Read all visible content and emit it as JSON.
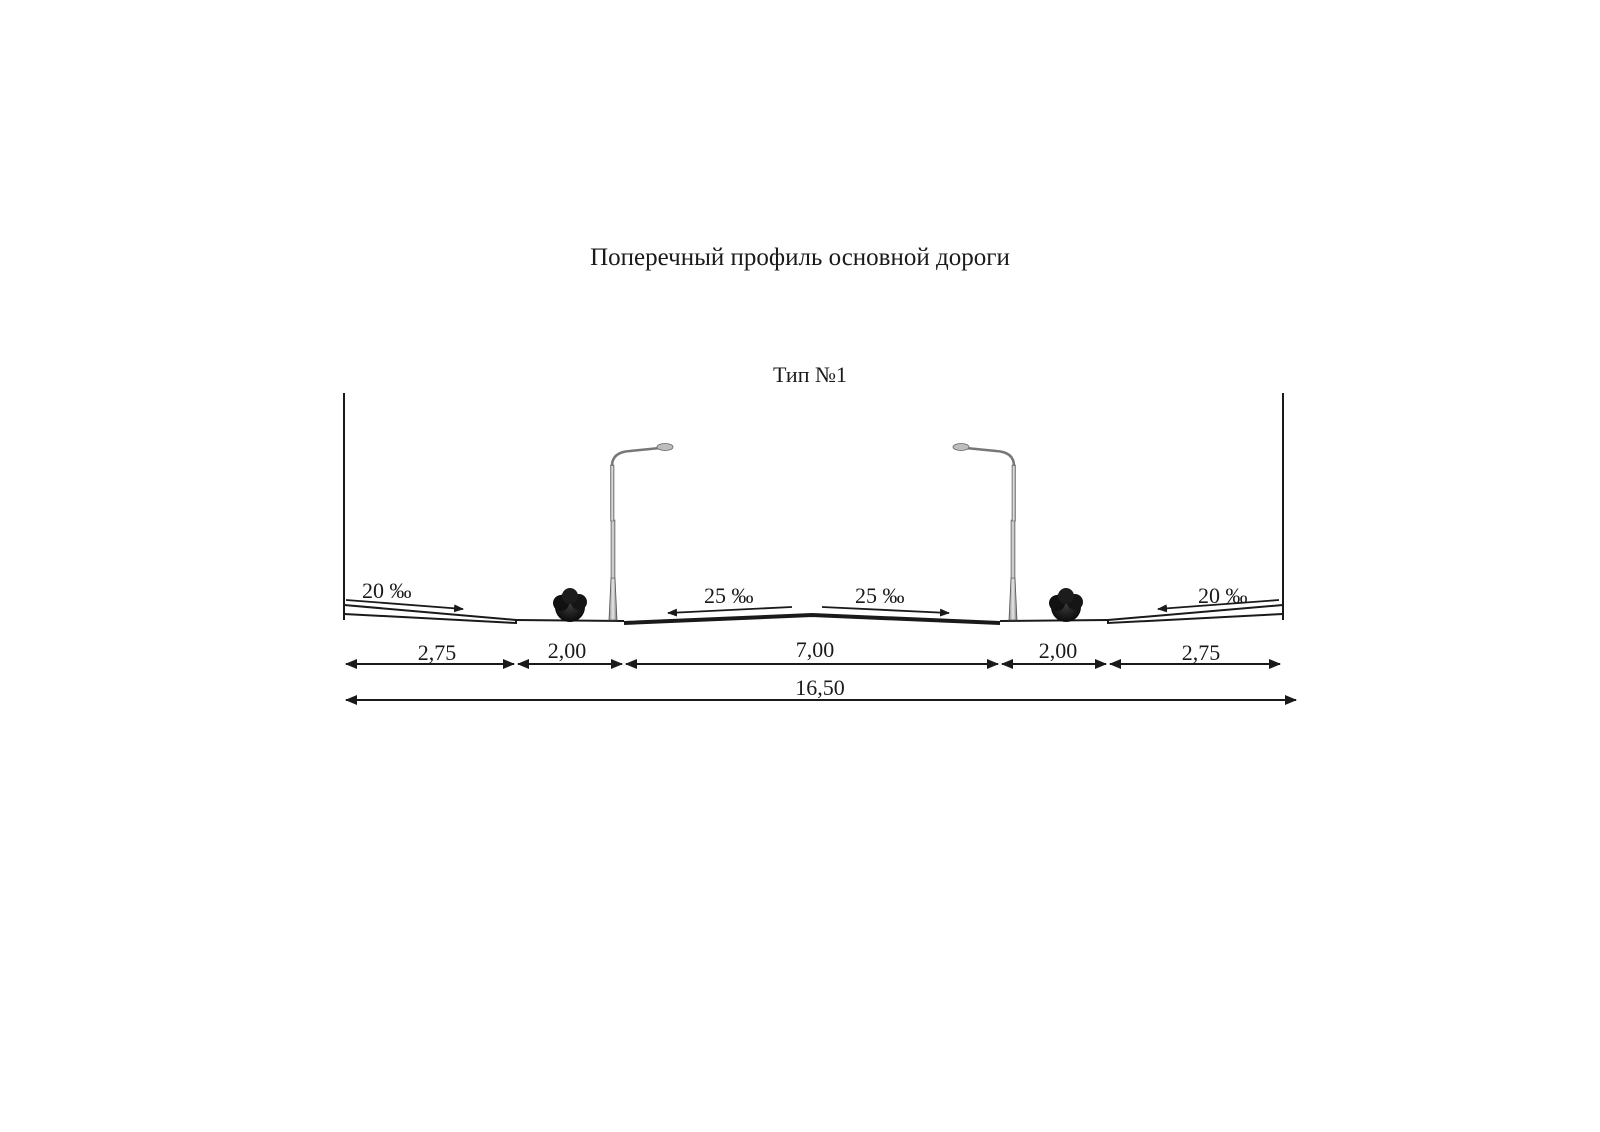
{
  "title": "Поперечный профиль основной дороги",
  "subtitle": "Тип №1",
  "slopes": {
    "left_sidewalk": "20 ‰",
    "left_carriageway": "25 ‰",
    "right_carriageway": "25 ‰",
    "right_sidewalk": "20 ‰"
  },
  "dimensions": {
    "left_sidewalk": "2,75",
    "left_green_strip": "2,00",
    "carriageway": "7,00",
    "right_green_strip": "2,00",
    "right_sidewalk": "2,75",
    "total": "16,50"
  },
  "icons": [
    "street-lamp-icon",
    "shrub-icon"
  ]
}
